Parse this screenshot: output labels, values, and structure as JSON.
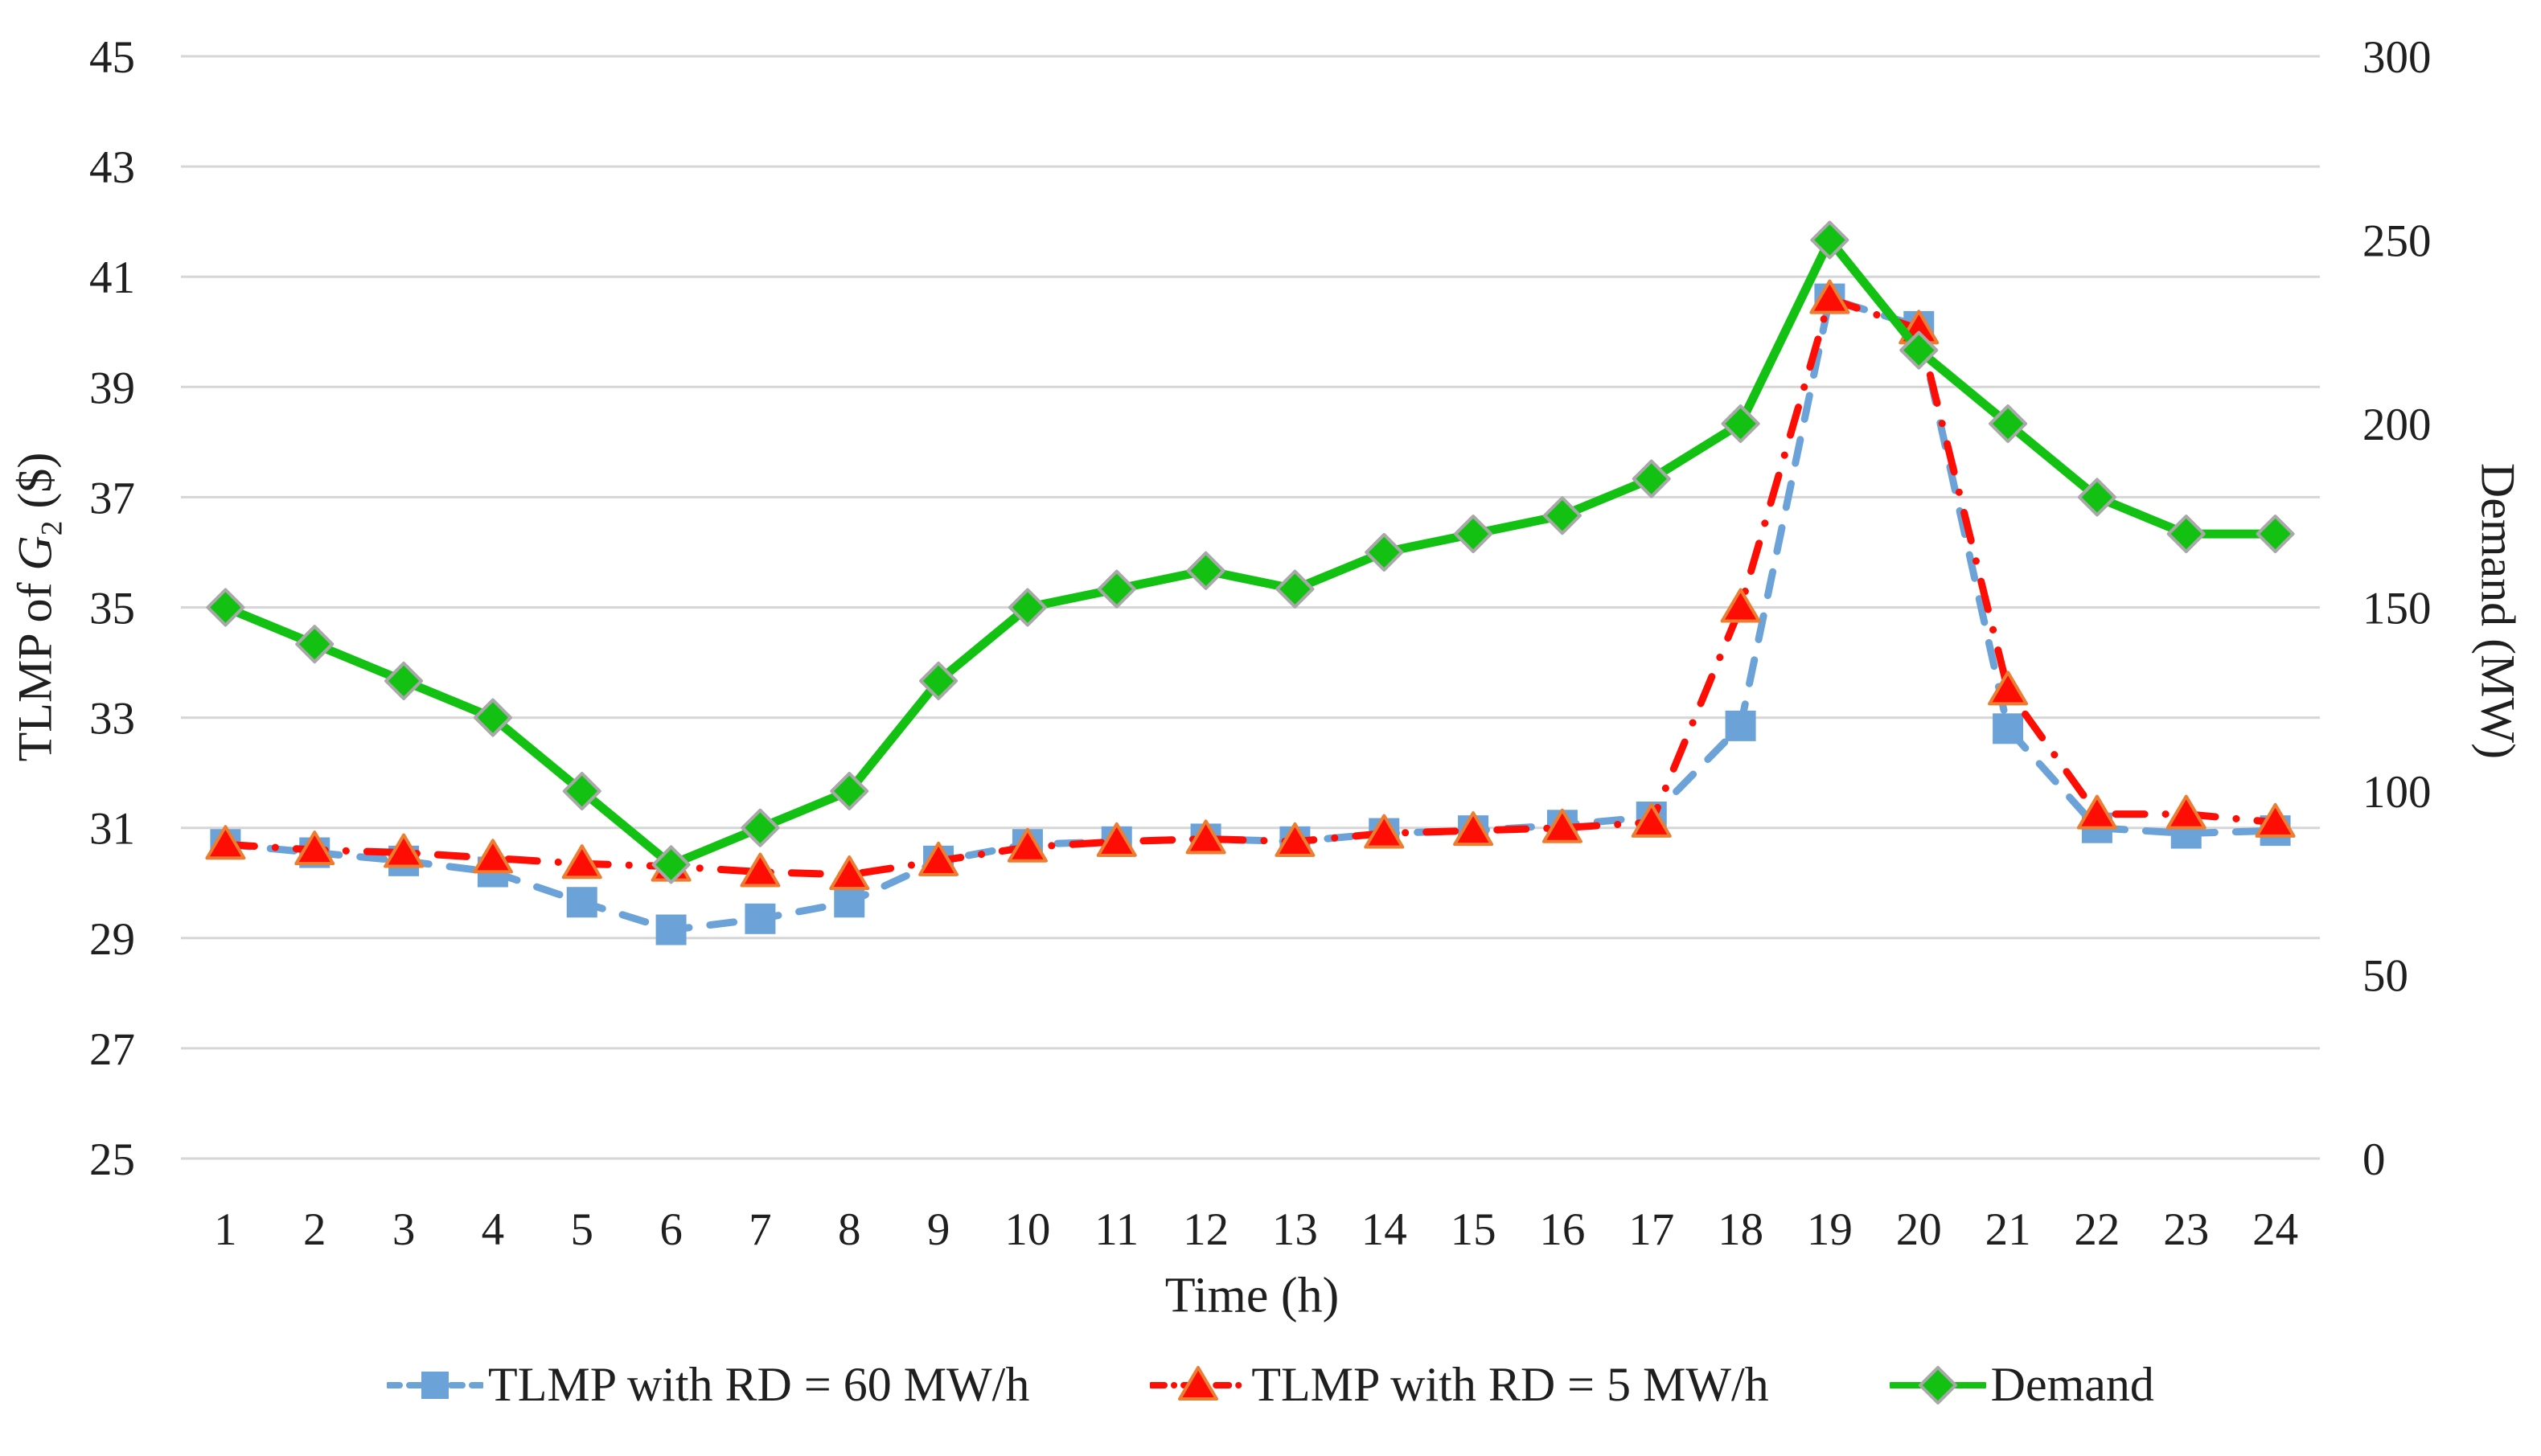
{
  "chart_data": {
    "type": "line",
    "title": "",
    "grid": "horizontal",
    "grid_color": "#D6D6D6",
    "x": {
      "title": "Time (h)",
      "categories": [
        "1",
        "2",
        "3",
        "4",
        "5",
        "6",
        "7",
        "8",
        "9",
        "10",
        "11",
        "12",
        "13",
        "14",
        "15",
        "16",
        "17",
        "18",
        "19",
        "20",
        "21",
        "22",
        "23",
        "24"
      ]
    },
    "y_left": {
      "title_prefix": "TLMP of ",
      "title_var": "G",
      "title_sub": "2",
      "title_suffix": " ($)",
      "min": 25,
      "max": 45,
      "step": 2,
      "ticks": [
        "25",
        "27",
        "29",
        "31",
        "33",
        "35",
        "37",
        "39",
        "41",
        "43",
        "45"
      ]
    },
    "y_right": {
      "title": "Demand (MW)",
      "min": 0,
      "max": 300,
      "step": 50,
      "ticks": [
        "0",
        "50",
        "100",
        "150",
        "200",
        "250",
        "300"
      ]
    },
    "legend_position": "bottom",
    "series": [
      {
        "name": "TLMP with RD = 60 MW/h",
        "axis": "left",
        "color": "#6BA3D8",
        "marker": "square",
        "marker_stroke": "none",
        "line_style": "dashed",
        "values": [
          30.7,
          30.55,
          30.4,
          30.2,
          29.65,
          29.15,
          29.35,
          29.65,
          30.4,
          30.7,
          30.75,
          30.8,
          30.75,
          30.9,
          30.95,
          31.05,
          31.2,
          32.85,
          40.6,
          40.1,
          32.8,
          31.0,
          30.9,
          30.95
        ]
      },
      {
        "name": "TLMP with RD = 5 MW/h",
        "axis": "left",
        "color": "#FE0D05",
        "marker": "triangle",
        "marker_stroke": "#ED7D31",
        "line_style": "dashdot",
        "values": [
          30.7,
          30.6,
          30.55,
          30.45,
          30.35,
          30.3,
          30.2,
          30.15,
          30.4,
          30.65,
          30.75,
          30.8,
          30.75,
          30.9,
          30.95,
          31.0,
          31.1,
          35.0,
          40.6,
          40.05,
          33.5,
          31.25,
          31.25,
          31.1
        ]
      },
      {
        "name": "Demand",
        "axis": "right",
        "color": "#13C113",
        "marker": "diamond",
        "marker_stroke": "#A8A8A8",
        "line_style": "solid",
        "values": [
          150,
          140,
          130,
          120,
          100,
          80,
          90,
          100,
          130,
          150,
          155,
          160,
          155,
          165,
          170,
          175,
          185,
          200,
          250,
          220,
          200,
          180,
          170,
          170
        ]
      }
    ]
  }
}
